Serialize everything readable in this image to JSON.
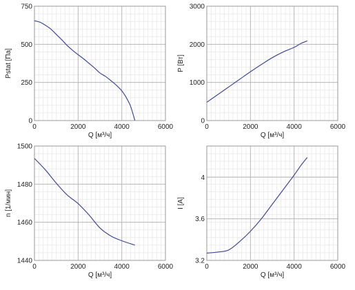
{
  "chart_data": [
    {
      "type": "line",
      "xlabel": "Q [м³/ч]",
      "ylabel": "Pstat [Па]",
      "xlim": [
        0,
        6000
      ],
      "ylim": [
        0,
        750
      ],
      "xticks": [
        "0",
        "2000",
        "4000",
        "6000"
      ],
      "yticks": [
        "0",
        "250",
        "500",
        "750"
      ],
      "grid": true,
      "x": [
        0,
        250,
        500,
        750,
        1000,
        1250,
        1500,
        1750,
        2000,
        2250,
        2500,
        2750,
        3000,
        3250,
        3500,
        3750,
        4000,
        4200,
        4400,
        4600
      ],
      "series": [
        {
          "values": [
            655,
            645,
            625,
            600,
            565,
            530,
            492,
            460,
            432,
            405,
            375,
            345,
            312,
            290,
            262,
            232,
            195,
            152,
            95,
            0
          ]
        }
      ]
    },
    {
      "type": "line",
      "xlabel": "Q [м³/ч]",
      "ylabel": "P [Вт]",
      "xlim": [
        0,
        6000
      ],
      "ylim": [
        0,
        3000
      ],
      "xticks": [
        "0",
        "2000",
        "4000",
        "6000"
      ],
      "yticks": [
        "0",
        "1000",
        "2000",
        "3000"
      ],
      "grid": true,
      "x": [
        0,
        500,
        1000,
        1500,
        2000,
        2500,
        3000,
        3500,
        4000,
        4300,
        4600
      ],
      "series": [
        {
          "values": [
            480,
            680,
            880,
            1080,
            1280,
            1470,
            1650,
            1800,
            1920,
            2020,
            2090
          ]
        }
      ]
    },
    {
      "type": "line",
      "xlabel": "Q [м³/ч]",
      "ylabel": "n [1/мин]",
      "xlim": [
        0,
        6000
      ],
      "ylim": [
        1440,
        1500
      ],
      "xticks": [
        "0",
        "2000",
        "4000",
        "6000"
      ],
      "yticks": [
        "1440",
        "1460",
        "1480",
        "1500"
      ],
      "grid": true,
      "x": [
        0,
        500,
        1000,
        1500,
        2000,
        2500,
        3000,
        3500,
        4000,
        4600
      ],
      "series": [
        {
          "values": [
            1493.5,
            1487.5,
            1480.5,
            1474.3,
            1469.8,
            1463.8,
            1457.0,
            1452.8,
            1450.3,
            1448.0
          ]
        }
      ]
    },
    {
      "type": "line",
      "xlabel": "Q [м³/ч]",
      "ylabel": "I [A]",
      "xlim": [
        0,
        6000
      ],
      "ylim": [
        3.2,
        4.3
      ],
      "xticks": [
        "0",
        "2000",
        "4000",
        "6000"
      ],
      "yticks": [
        "3.2",
        "3.6",
        "4"
      ],
      "ytick_values": [
        3.2,
        3.6,
        4.0
      ],
      "grid": true,
      "x": [
        0,
        500,
        1000,
        1500,
        2000,
        2500,
        3000,
        3500,
        4000,
        4300,
        4600
      ],
      "series": [
        {
          "values": [
            3.27,
            3.28,
            3.3,
            3.38,
            3.48,
            3.6,
            3.74,
            3.88,
            4.02,
            4.11,
            4.19
          ]
        }
      ]
    }
  ],
  "colors": {
    "curve": "#3f4899"
  }
}
